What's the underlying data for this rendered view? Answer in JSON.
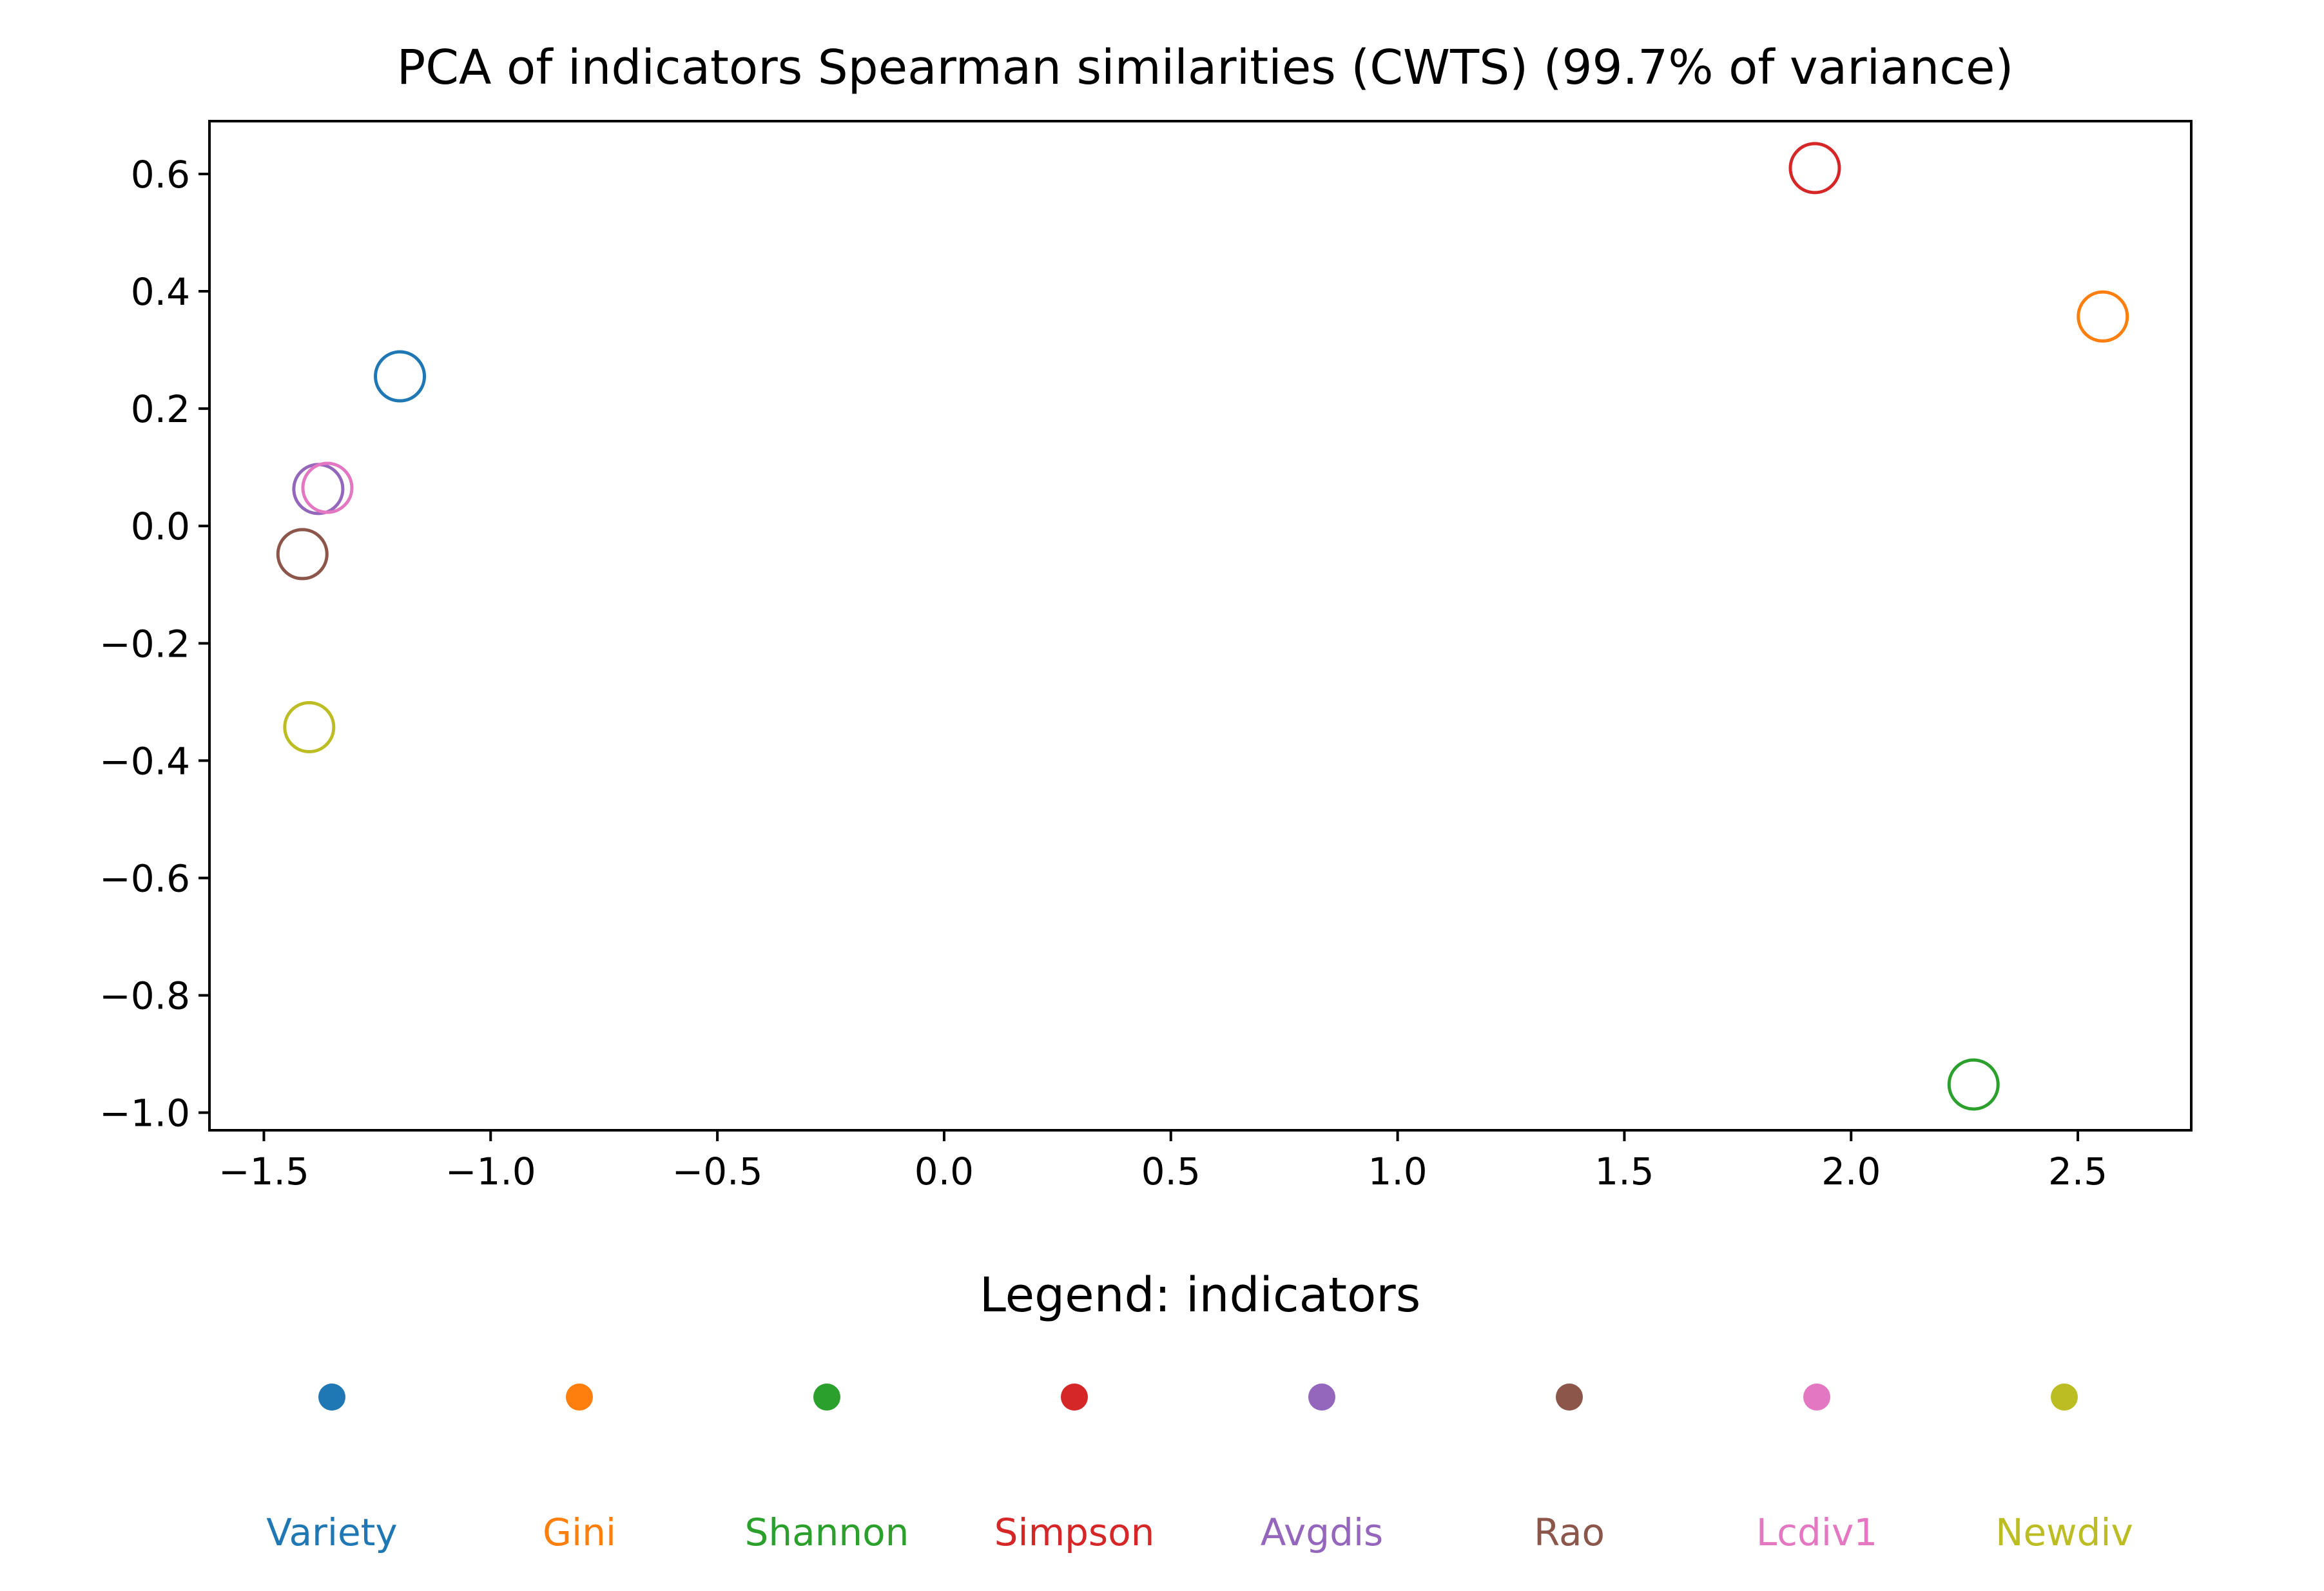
{
  "chart_data": {
    "type": "scatter",
    "title": "PCA of indicators Spearman similarities (CWTS) (99.7% of variance)",
    "xlabel": "",
    "ylabel": "",
    "xlim": [
      -1.62,
      2.75
    ],
    "ylim": [
      -1.03,
      0.69
    ],
    "x_ticks": [
      -1.5,
      -1.0,
      -0.5,
      0.0,
      0.5,
      1.0,
      1.5,
      2.0,
      2.5
    ],
    "x_tick_labels": [
      "−1.5",
      "−1.0",
      "−0.5",
      "0.0",
      "0.5",
      "1.0",
      "1.5",
      "2.0",
      "2.5"
    ],
    "y_ticks": [
      0.6,
      0.4,
      0.2,
      0.0,
      -0.2,
      -0.4,
      -0.6,
      -0.8,
      -1.0
    ],
    "y_tick_labels": [
      "0.6",
      "0.4",
      "0.2",
      "0.0",
      "−0.2",
      "−0.4",
      "−0.6",
      "−0.8",
      "−1.0"
    ],
    "grid": false,
    "marker": "open-circle",
    "legend": {
      "title": "Legend: indicators",
      "placement": "bottom"
    },
    "series": [
      {
        "name": "Variety",
        "color": "#1f77b4",
        "x": -1.2,
        "y": 0.255
      },
      {
        "name": "Gini",
        "color": "#ff7f0e",
        "x": 2.555,
        "y": 0.357
      },
      {
        "name": "Shannon",
        "color": "#2ca02c",
        "x": 2.27,
        "y": -0.952
      },
      {
        "name": "Simpson",
        "color": "#d62728",
        "x": 1.92,
        "y": 0.61
      },
      {
        "name": "Avgdis",
        "color": "#9467bd",
        "x": -1.38,
        "y": 0.063
      },
      {
        "name": "Rao",
        "color": "#8c564b",
        "x": -1.415,
        "y": -0.048
      },
      {
        "name": "Lcdiv1",
        "color": "#e377c2",
        "x": -1.36,
        "y": 0.065
      },
      {
        "name": "Newdiv",
        "color": "#bcbd22",
        "x": -1.4,
        "y": -0.343
      }
    ]
  }
}
